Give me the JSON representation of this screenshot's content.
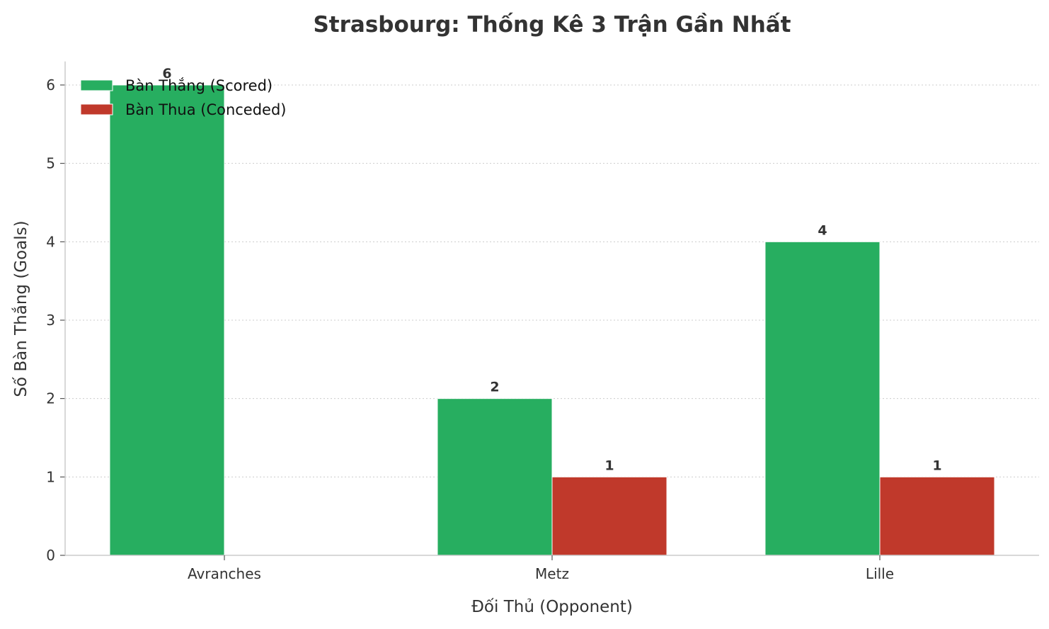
{
  "chart_data": {
    "type": "bar",
    "title": "Strasbourg: Thống Kê 3 Trận Gần Nhất",
    "xlabel": "Đối Thủ (Opponent)",
    "ylabel": "Số Bàn Thắng (Goals)",
    "categories": [
      "Avranches",
      "Metz",
      "Lille"
    ],
    "series": [
      {
        "name": "Bàn Thắng (Scored)",
        "values": [
          6,
          2,
          4
        ],
        "color": "#27ae60"
      },
      {
        "name": "Bàn Thua (Conceded)",
        "values": [
          0,
          1,
          1
        ],
        "color": "#c0392b"
      }
    ],
    "ylim": [
      0,
      6.3
    ],
    "yticks": [
      0,
      1,
      2,
      3,
      4,
      5,
      6
    ],
    "grid": "horizontal dotted",
    "legend": "top-left",
    "data_labels": "shown for non-zero values"
  }
}
